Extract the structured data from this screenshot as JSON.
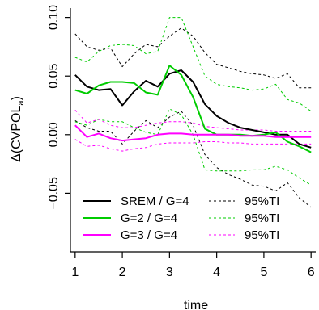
{
  "chart_data": {
    "type": "line",
    "xlabel": "time",
    "ylabel": "Δ(CVPOL",
    "ylabel_sub": "a",
    "ylabel_close": ")",
    "xlim": [
      0.9,
      6.1
    ],
    "ylim": [
      -0.1,
      0.108
    ],
    "xticks": [
      1,
      2,
      3,
      4,
      5,
      6
    ],
    "xtick_labels": [
      "1",
      "2",
      "3",
      "4",
      "5",
      "6"
    ],
    "yticks": [
      -0.05,
      0.0,
      0.05,
      0.1
    ],
    "ytick_labels": [
      "−0.05",
      "0.00",
      "0.05",
      "0.10"
    ],
    "x": [
      1.0,
      1.25,
      1.5,
      1.75,
      2.0,
      2.25,
      2.5,
      2.75,
      3.0,
      3.25,
      3.5,
      3.75,
      4.0,
      4.25,
      4.5,
      4.75,
      5.0,
      5.25,
      5.5,
      5.75,
      6.0
    ],
    "series": [
      {
        "name": "SREM / G=4",
        "color": "#000000",
        "dash": "solid",
        "values": [
          0.051,
          0.041,
          0.038,
          0.039,
          0.025,
          0.037,
          0.046,
          0.041,
          0.052,
          0.055,
          0.045,
          0.026,
          0.016,
          0.01,
          0.006,
          0.004,
          0.002,
          0.0,
          0.0,
          -0.008,
          -0.011
        ]
      },
      {
        "name": "G=2 / G=4",
        "color": "#00cc00",
        "dash": "solid",
        "values": [
          0.038,
          0.035,
          0.042,
          0.045,
          0.045,
          0.044,
          0.036,
          0.034,
          0.059,
          0.051,
          0.032,
          0.005,
          0.0,
          0.0,
          0.0,
          -0.001,
          0.0,
          0.002,
          -0.006,
          -0.01,
          -0.015
        ]
      },
      {
        "name": "G=3 / G=4",
        "color": "#ff00ff",
        "dash": "solid",
        "values": [
          0.008,
          -0.002,
          0.001,
          -0.003,
          -0.005,
          -0.004,
          -0.003,
          0.0,
          0.001,
          0.001,
          0.0,
          0.0,
          0.0,
          0.0,
          -0.001,
          -0.001,
          -0.001,
          -0.002,
          -0.002,
          -0.002,
          -0.002
        ]
      },
      {
        "name": "95%TI",
        "legend": true,
        "color": "#000000",
        "dash": "dashed",
        "values": [
          0.086,
          0.075,
          0.072,
          0.074,
          0.058,
          0.069,
          0.077,
          0.075,
          0.084,
          0.091,
          0.084,
          0.07,
          0.06,
          0.057,
          0.054,
          0.052,
          0.051,
          0.048,
          0.052,
          0.04,
          0.04
        ]
      },
      {
        "name": "95%TI",
        "legend": false,
        "color": "#000000",
        "dash": "dashed",
        "values": [
          0.012,
          0.006,
          0.003,
          0.003,
          -0.008,
          0.003,
          0.012,
          0.006,
          0.015,
          0.02,
          0.008,
          -0.017,
          -0.028,
          -0.034,
          -0.038,
          -0.043,
          -0.044,
          -0.048,
          -0.041,
          -0.054,
          -0.062
        ]
      },
      {
        "name": "95%TI",
        "legend": true,
        "color": "#00cc00",
        "dash": "dashed",
        "values": [
          0.066,
          0.062,
          0.071,
          0.076,
          0.077,
          0.076,
          0.069,
          0.071,
          0.1,
          0.1,
          0.075,
          0.05,
          0.043,
          0.041,
          0.04,
          0.038,
          0.039,
          0.043,
          0.03,
          0.027,
          0.02
        ]
      },
      {
        "name": "95%TI",
        "legend": false,
        "color": "#00cc00",
        "dash": "dashed",
        "values": [
          0.011,
          0.008,
          0.013,
          0.011,
          0.011,
          0.006,
          0.002,
          0.0,
          0.022,
          0.017,
          0.0,
          -0.03,
          -0.031,
          -0.031,
          -0.031,
          -0.03,
          -0.03,
          -0.027,
          -0.03,
          -0.037,
          -0.043
        ]
      },
      {
        "name": "95%TI",
        "legend": true,
        "color": "#ff00ff",
        "dash": "dashed",
        "values": [
          0.021,
          0.01,
          0.013,
          0.008,
          0.006,
          0.006,
          0.008,
          0.01,
          0.011,
          0.011,
          0.01,
          0.007,
          0.006,
          0.005,
          0.004,
          0.004,
          0.004,
          0.003,
          0.003,
          0.003,
          0.003
        ]
      },
      {
        "name": "95%TI",
        "legend": false,
        "color": "#ff00ff",
        "dash": "dashed",
        "values": [
          -0.004,
          -0.01,
          -0.009,
          -0.012,
          -0.014,
          -0.012,
          -0.011,
          -0.008,
          -0.007,
          -0.007,
          -0.007,
          -0.006,
          -0.006,
          -0.007,
          -0.007,
          -0.008,
          -0.008,
          -0.008,
          -0.008,
          -0.008,
          -0.008
        ]
      }
    ],
    "legend": {
      "placement": "bottom-left",
      "columns": [
        [
          {
            "label": "SREM / G=4",
            "color": "#000000",
            "dash": "solid"
          },
          {
            "label": "G=2 / G=4",
            "color": "#00cc00",
            "dash": "solid"
          },
          {
            "label": "G=3 / G=4",
            "color": "#ff00ff",
            "dash": "solid"
          }
        ],
        [
          {
            "label": "95%TI",
            "color": "#000000",
            "dash": "dashed"
          },
          {
            "label": "95%TI",
            "color": "#00cc00",
            "dash": "dashed"
          },
          {
            "label": "95%TI",
            "color": "#ff00ff",
            "dash": "dashed"
          }
        ]
      ]
    },
    "grid": false
  }
}
